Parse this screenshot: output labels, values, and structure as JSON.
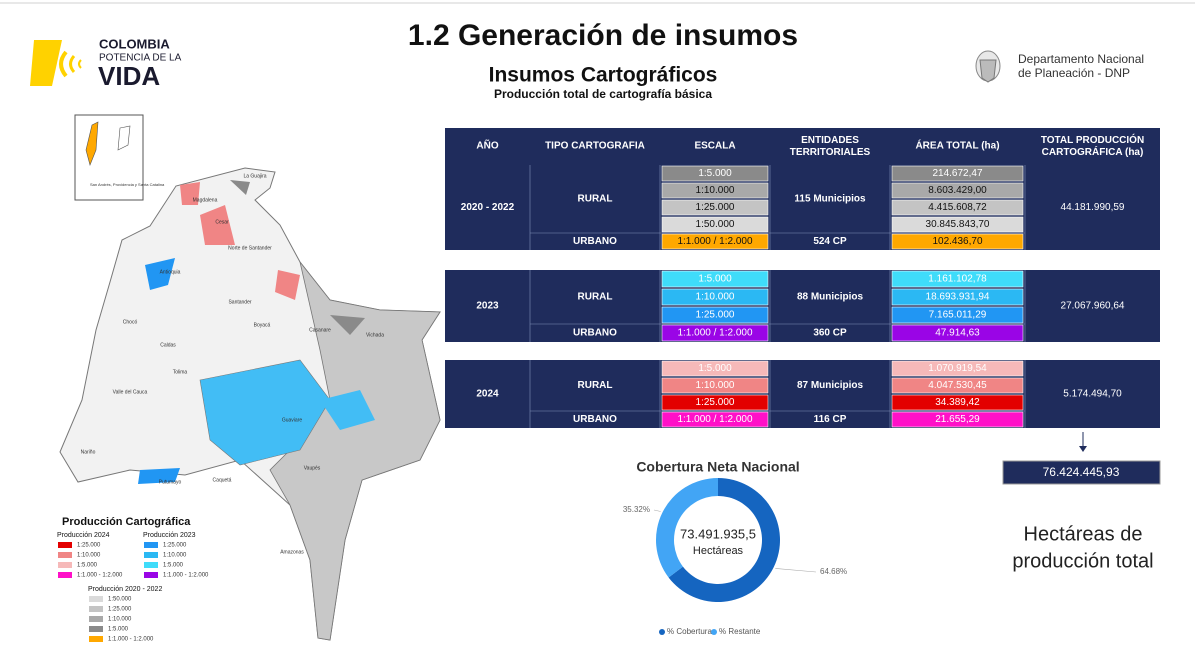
{
  "logo": {
    "line1": "COLOMBIA",
    "line2": "POTENCIA DE LA",
    "line3": "VIDA"
  },
  "header": {
    "title": "1.2 Generación de insumos",
    "subtitle": "Insumos Cartográficos",
    "caption": "Producción total de cartografía básica"
  },
  "dnp": {
    "line1": "Departamento Nacional",
    "line2": "de Planeación - DNP"
  },
  "table": {
    "columns": [
      "AÑO",
      "TIPO CARTOGRAFIA",
      "ESCALA",
      "ENTIDADES TERRITORIALES",
      "ÁREA TOTAL (ha)",
      "TOTAL PRODUCCIÓN CARTOGRÁFICA (ha)"
    ],
    "blocks": [
      {
        "year": "2020 - 2022",
        "rural": {
          "type": "RURAL",
          "entities": "115 Municipios",
          "rows": [
            {
              "scale": "1:5.000",
              "area": "214.672,47",
              "color": "#8a8a8a"
            },
            {
              "scale": "1:10.000",
              "area": "8.603.429,00",
              "color": "#a9a9a9"
            },
            {
              "scale": "1:25.000",
              "area": "4.415.608,72",
              "color": "#c4c4c4"
            },
            {
              "scale": "1:50.000",
              "area": "30.845.843,70",
              "color": "#dadada"
            }
          ]
        },
        "urban": {
          "type": "URBANO",
          "scale": "1:1.000 / 1:2.000",
          "entities": "524 CP",
          "area": "102.436,70",
          "color": "#ffa800"
        },
        "total": "44.181.990,59"
      },
      {
        "year": "2023",
        "rural": {
          "type": "RURAL",
          "entities": "88 Municipios",
          "rows": [
            {
              "scale": "1:5.000",
              "area": "1.161.102,78",
              "color": "#3fdcfa"
            },
            {
              "scale": "1:10.000",
              "area": "18.693.931,94",
              "color": "#2bb8f3"
            },
            {
              "scale": "1:25.000",
              "area": "7.165.011,29",
              "color": "#2196f3"
            }
          ]
        },
        "urban": {
          "type": "URBANO",
          "scale": "1:1.000 / 1:2.000",
          "entities": "360 CP",
          "area": "47.914,63",
          "color": "#9a05e6"
        },
        "total": "27.067.960,64"
      },
      {
        "year": "2024",
        "rural": {
          "type": "RURAL",
          "entities": "87 Municipios",
          "rows": [
            {
              "scale": "1:5.000",
              "area": "1.070.919,54",
              "color": "#f6b9b9"
            },
            {
              "scale": "1:10.000",
              "area": "4.047.530,45",
              "color": "#f08585"
            },
            {
              "scale": "1:25.000",
              "area": "34.389,42",
              "color": "#e30000"
            }
          ]
        },
        "urban": {
          "type": "URBANO",
          "scale": "1:1.000 / 1:2.000",
          "entities": "116 CP",
          "area": "21.655,29",
          "color": "#ff10c8"
        },
        "total": "5.174.494,70"
      }
    ]
  },
  "grand_total": {
    "value": "76.424.445,93",
    "caption_line1": "Hectáreas de",
    "caption_line2": "producción total"
  },
  "donut": {
    "type": "pie",
    "title": "Cobertura Neta Nacional",
    "center_value": "73.491.935,5",
    "center_label": "Hectáreas",
    "categories": [
      "% Cobertura",
      "% Restante"
    ],
    "values": [
      64.68,
      35.32
    ],
    "value_labels": [
      "64.68%",
      "35.32%"
    ],
    "colors": [
      "#1565c0",
      "#42a5f5"
    ]
  },
  "map": {
    "inset": "San Andrés, Providencia y Santa Catalina",
    "labels": [
      "La Guajira",
      "Magdalena",
      "Cesar",
      "Norte de Santander",
      "Antioquia",
      "Santander",
      "Chocó",
      "Boyacá",
      "Casanare",
      "Vichada",
      "Caldas",
      "Tolima",
      "Valle del Cauca",
      "Nariño",
      "Putumayo",
      "Caquetá",
      "Guaviare",
      "Vaupés",
      "Amazonas"
    ]
  },
  "legend": {
    "title": "Producción Cartográfica",
    "groups": [
      {
        "title": "Producción 2024",
        "items": [
          {
            "label": "1:25.000",
            "color": "#e30000"
          },
          {
            "label": "1:10.000",
            "color": "#f08585"
          },
          {
            "label": "1:5.000",
            "color": "#f6b9b9"
          },
          {
            "label": "1:1.000 - 1:2.000",
            "color": "#ff10c8"
          }
        ]
      },
      {
        "title": "Producción 2023",
        "items": [
          {
            "label": "1:25.000",
            "color": "#2196f3"
          },
          {
            "label": "1:10.000",
            "color": "#2bb8f3"
          },
          {
            "label": "1:5.000",
            "color": "#3fdcfa"
          },
          {
            "label": "1:1.000 - 1:2.000",
            "color": "#9a05e6"
          }
        ]
      },
      {
        "title": "Producción 2020 - 2022",
        "items": [
          {
            "label": "1:50.000",
            "color": "#dadada"
          },
          {
            "label": "1:25.000",
            "color": "#c4c4c4"
          },
          {
            "label": "1:10.000",
            "color": "#a9a9a9"
          },
          {
            "label": "1:5.000",
            "color": "#8a8a8a"
          },
          {
            "label": "1:1.000 - 1:2.000",
            "color": "#ffa800"
          }
        ]
      }
    ]
  }
}
